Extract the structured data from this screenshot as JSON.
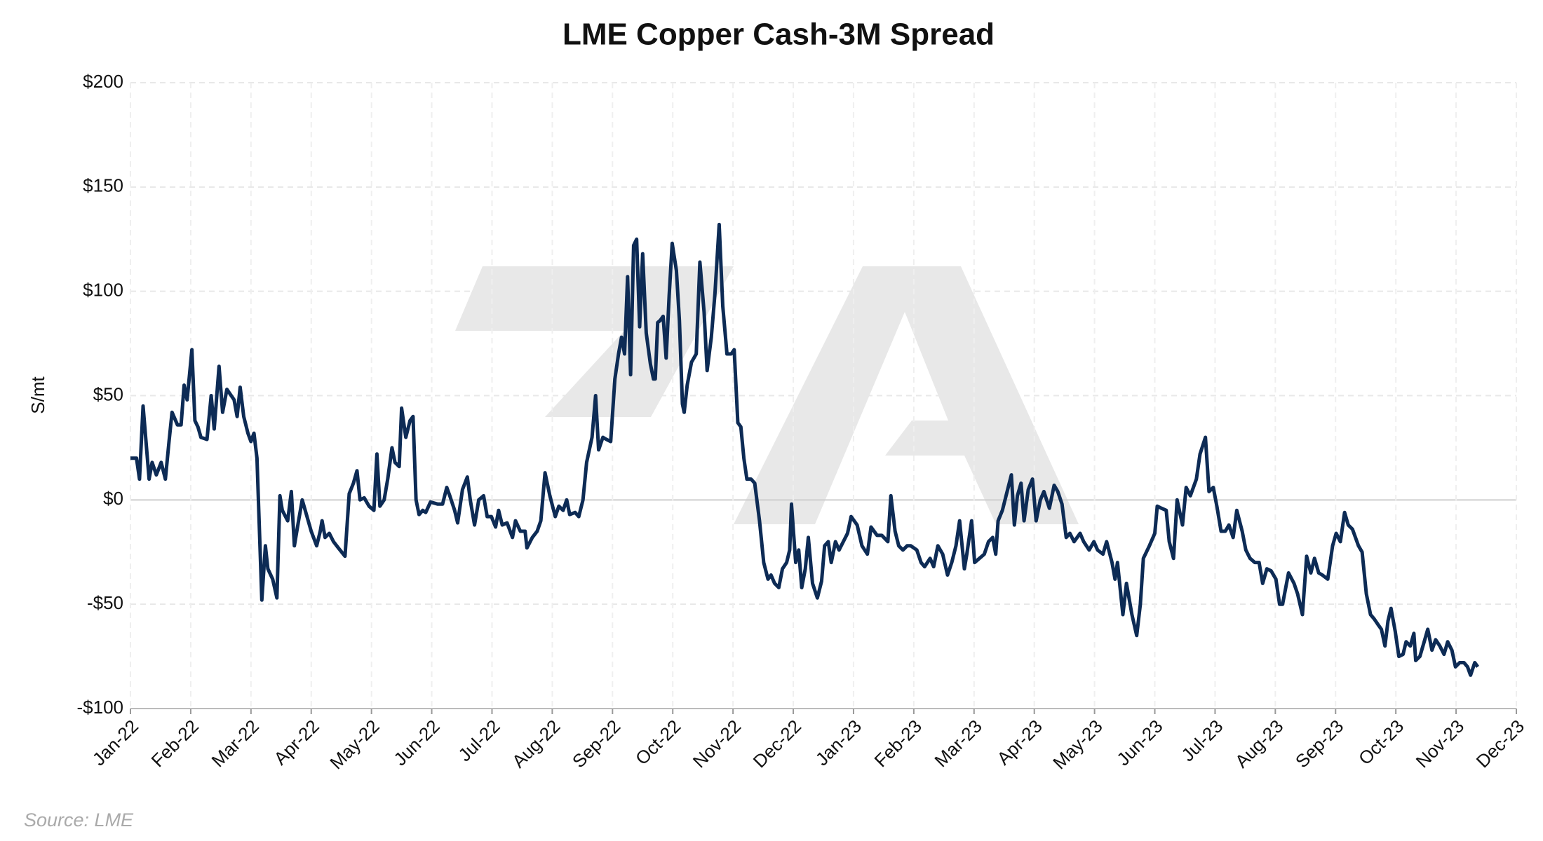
{
  "chart_data": {
    "type": "line",
    "title": "LME Copper Cash-3M Spread",
    "ylabel": "S/mt",
    "source": "Source: LME",
    "color": "#0d2b55",
    "grid": true,
    "xlim": [
      0,
      23
    ],
    "ylim": [
      -100,
      200
    ],
    "xticks": [
      {
        "value": 0,
        "label": "Jan-22"
      },
      {
        "value": 1,
        "label": "Feb-22"
      },
      {
        "value": 2,
        "label": "Mar-22"
      },
      {
        "value": 3,
        "label": "Apr-22"
      },
      {
        "value": 4,
        "label": "May-22"
      },
      {
        "value": 5,
        "label": "Jun-22"
      },
      {
        "value": 6,
        "label": "Jul-22"
      },
      {
        "value": 7,
        "label": "Aug-22"
      },
      {
        "value": 8,
        "label": "Sep-22"
      },
      {
        "value": 9,
        "label": "Oct-22"
      },
      {
        "value": 10,
        "label": "Nov-22"
      },
      {
        "value": 11,
        "label": "Dec-22"
      },
      {
        "value": 12,
        "label": "Jan-23"
      },
      {
        "value": 13,
        "label": "Feb-23"
      },
      {
        "value": 14,
        "label": "Mar-23"
      },
      {
        "value": 15,
        "label": "Apr-23"
      },
      {
        "value": 16,
        "label": "May-23"
      },
      {
        "value": 17,
        "label": "Jun-23"
      },
      {
        "value": 18,
        "label": "Jul-23"
      },
      {
        "value": 19,
        "label": "Aug-23"
      },
      {
        "value": 20,
        "label": "Sep-23"
      },
      {
        "value": 21,
        "label": "Oct-23"
      },
      {
        "value": 22,
        "label": "Nov-23"
      },
      {
        "value": 23,
        "label": "Dec-23"
      }
    ],
    "yticks": [
      {
        "value": -100,
        "label": "-$100"
      },
      {
        "value": -50,
        "label": "-$50"
      },
      {
        "value": 0,
        "label": "$0"
      },
      {
        "value": 50,
        "label": "$50"
      },
      {
        "value": 100,
        "label": "$100"
      },
      {
        "value": 150,
        "label": "$150"
      },
      {
        "value": 200,
        "label": "$200"
      }
    ],
    "x": [
      0,
      0.1,
      0.15,
      0.21,
      0.31,
      0.36,
      0.43,
      0.51,
      0.58,
      0.64,
      0.69,
      0.78,
      0.84,
      0.89,
      0.94,
      1.02,
      1.07,
      1.12,
      1.17,
      1.27,
      1.34,
      1.39,
      1.47,
      1.53,
      1.6,
      1.72,
      1.77,
      1.82,
      1.88,
      1.95,
      2.0,
      2.05,
      2.1,
      2.18,
      2.24,
      2.28,
      2.36,
      2.43,
      2.48,
      2.52,
      2.61,
      2.67,
      2.72,
      2.79,
      2.85,
      2.92,
      3.0,
      3.09,
      3.15,
      3.18,
      3.23,
      3.3,
      3.37,
      3.45,
      3.56,
      3.63,
      3.7,
      3.76,
      3.81,
      3.88,
      3.96,
      4.04,
      4.09,
      4.14,
      4.21,
      4.27,
      4.34,
      4.39,
      4.46,
      4.5,
      4.57,
      4.64,
      4.69,
      4.74,
      4.79,
      4.85,
      4.9,
      4.98,
      5.1,
      5.18,
      5.25,
      5.3,
      5.38,
      5.43,
      5.51,
      5.59,
      5.64,
      5.71,
      5.78,
      5.86,
      5.92,
      5.99,
      6.06,
      6.11,
      6.17,
      6.25,
      6.34,
      6.39,
      6.47,
      6.55,
      6.58,
      6.67,
      6.75,
      6.81,
      6.88,
      6.96,
      7.05,
      7.11,
      7.18,
      7.24,
      7.29,
      7.38,
      7.44,
      7.51,
      7.57,
      7.66,
      7.72,
      7.77,
      7.84,
      7.9,
      7.97,
      8.04,
      8.1,
      8.15,
      8.2,
      8.25,
      8.3,
      8.35,
      8.4,
      8.45,
      8.5,
      8.56,
      8.63,
      8.68,
      8.71,
      8.75,
      8.79,
      8.84,
      8.89,
      8.94,
      8.99,
      9.06,
      9.11,
      9.16,
      9.19,
      9.24,
      9.31,
      9.39,
      9.45,
      9.52,
      9.57,
      9.64,
      9.7,
      9.77,
      9.83,
      9.9,
      9.97,
      10.02,
      10.08,
      10.13,
      10.18,
      10.23,
      10.3,
      10.36,
      10.44,
      10.51,
      10.58,
      10.63,
      10.69,
      10.76,
      10.82,
      10.89,
      10.94,
      10.97,
      11.04,
      11.09,
      11.14,
      11.2,
      11.25,
      11.32,
      11.4,
      11.47,
      11.52,
      11.58,
      11.63,
      11.7,
      11.76,
      11.83,
      11.9,
      11.96,
      12.06,
      12.14,
      12.23,
      12.29,
      12.39,
      12.47,
      12.57,
      12.62,
      12.69,
      12.75,
      12.82,
      12.89,
      12.95,
      13.05,
      13.12,
      13.18,
      13.27,
      13.33,
      13.4,
      13.48,
      13.56,
      13.63,
      13.7,
      13.76,
      13.84,
      13.88,
      13.96,
      14.01,
      14.09,
      14.17,
      14.24,
      14.31,
      14.36,
      14.4,
      14.47,
      14.54,
      14.62,
      14.67,
      14.72,
      14.78,
      14.83,
      14.9,
      14.97,
      15.03,
      15.1,
      15.16,
      15.25,
      15.33,
      15.39,
      15.46,
      15.53,
      15.59,
      15.66,
      15.76,
      15.82,
      15.91,
      15.99,
      16.05,
      16.14,
      16.2,
      16.29,
      16.34,
      16.38,
      16.47,
      16.53,
      16.62,
      16.7,
      16.76,
      16.81,
      16.91,
      17.0,
      17.04,
      17.11,
      17.19,
      17.24,
      17.31,
      17.37,
      17.46,
      17.52,
      17.59,
      17.69,
      17.75,
      17.84,
      17.9,
      17.97,
      18.03,
      18.1,
      18.17,
      18.23,
      18.3,
      18.36,
      18.45,
      18.51,
      18.58,
      18.66,
      18.73,
      18.79,
      18.86,
      18.93,
      19.01,
      19.07,
      19.12,
      19.22,
      19.31,
      19.37,
      19.45,
      19.52,
      19.59,
      19.65,
      19.72,
      19.78,
      19.87,
      19.95,
      20.01,
      20.08,
      20.15,
      20.21,
      20.28,
      20.38,
      20.44,
      20.51,
      20.58,
      20.64,
      20.71,
      20.76,
      20.82,
      20.87,
      20.92,
      20.99,
      21.05,
      21.12,
      21.17,
      21.24,
      21.3,
      21.33,
      21.4,
      21.47,
      21.53,
      21.6,
      21.66,
      21.73,
      21.8,
      21.86,
      21.93,
      21.99,
      22.06,
      22.13,
      22.19,
      22.24,
      22.31,
      22.36
    ],
    "values": [
      20,
      20,
      10,
      45,
      10,
      18,
      12,
      18,
      10,
      28,
      42,
      36,
      36,
      55,
      48,
      72,
      38,
      35,
      30,
      29,
      50,
      34,
      64,
      42,
      53,
      48,
      40,
      54,
      40,
      32,
      28,
      32,
      20,
      -48,
      -22,
      -33,
      -38,
      -47,
      2,
      -5,
      -10,
      4,
      -22,
      -10,
      0,
      -7,
      -15,
      -22,
      -15,
      -10,
      -18,
      -16,
      -20,
      -23,
      -27,
      3,
      8,
      14,
      0,
      1,
      -3,
      -5,
      22,
      -3,
      0,
      10,
      25,
      18,
      16,
      44,
      30,
      38,
      40,
      0,
      -7,
      -5,
      -6,
      -1,
      -2,
      -2,
      6,
      2,
      -5,
      -11,
      5,
      11,
      0,
      -12,
      0,
      2,
      -8,
      -8,
      -13,
      -5,
      -12,
      -11,
      -18,
      -10,
      -15,
      -15,
      -23,
      -18,
      -15,
      -10,
      13,
      2,
      -8,
      -3,
      -5,
      0,
      -7,
      -6,
      -8,
      0,
      18,
      30,
      50,
      24,
      30,
      29,
      28,
      58,
      70,
      78,
      70,
      107,
      60,
      122,
      125,
      83,
      118,
      80,
      65,
      58,
      58,
      85,
      86,
      88,
      68,
      98,
      123,
      110,
      86,
      46,
      42,
      55,
      66,
      70,
      114,
      90,
      62,
      78,
      99,
      132,
      93,
      70,
      70,
      72,
      37,
      35,
      20,
      10,
      10,
      8,
      -10,
      -30,
      -38,
      -36,
      -40,
      -42,
      -33,
      -30,
      -24,
      -2,
      -30,
      -24,
      -42,
      -33,
      -18,
      -40,
      -47,
      -39,
      -22,
      -20,
      -30,
      -20,
      -24,
      -20,
      -16,
      -8,
      -12,
      -22,
      -26,
      -13,
      -17,
      -17,
      -20,
      2,
      -15,
      -22,
      -24,
      -22,
      -22,
      -24,
      -30,
      -32,
      -28,
      -32,
      -22,
      -26,
      -36,
      -30,
      -22,
      -10,
      -33,
      -26,
      -10,
      -30,
      -28,
      -26,
      -20,
      -18,
      -26,
      -10,
      -5,
      3,
      12,
      -12,
      2,
      8,
      -10,
      5,
      10,
      -10,
      0,
      4,
      -4,
      7,
      4,
      -2,
      -18,
      -16,
      -20,
      -16,
      -20,
      -24,
      -20,
      -24,
      -26,
      -20,
      -30,
      -38,
      -30,
      -55,
      -40,
      -55,
      -65,
      -50,
      -28,
      -22,
      -16,
      -3,
      -4,
      -5,
      -20,
      -28,
      0,
      -12,
      6,
      2,
      10,
      22,
      30,
      4,
      6,
      -3,
      -15,
      -15,
      -12,
      -18,
      -5,
      -15,
      -24,
      -28,
      -30,
      -30,
      -40,
      -33,
      -34,
      -38,
      -50,
      -50,
      -35,
      -40,
      -45,
      -55,
      -27,
      -35,
      -28,
      -35,
      -36,
      -38,
      -22,
      -16,
      -20,
      -6,
      -12,
      -14,
      -22,
      -25,
      -45,
      -55,
      -57,
      -60,
      -62,
      -70,
      -58,
      -52,
      -63,
      -75,
      -74,
      -68,
      -70,
      -64,
      -77,
      -75,
      -68,
      -62,
      -72,
      -67,
      -70,
      -74,
      -68,
      -72,
      -80,
      -78,
      -78,
      -80,
      -84,
      -78,
      -80
    ]
  }
}
